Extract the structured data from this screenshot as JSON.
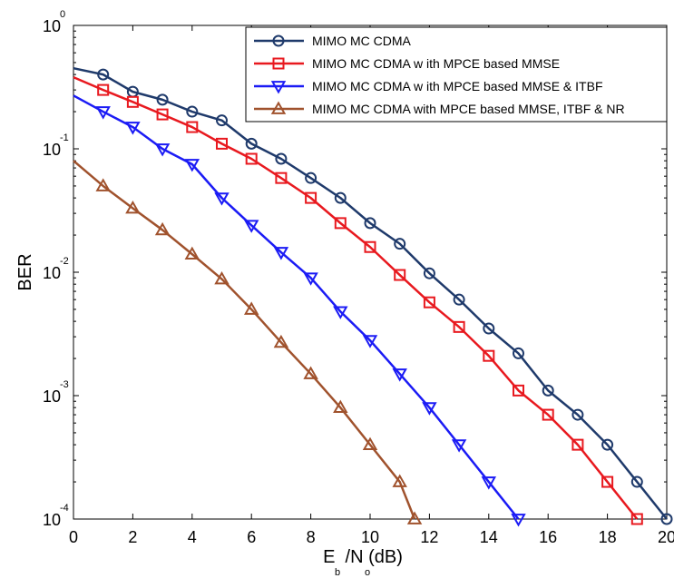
{
  "chart_data": {
    "type": "line",
    "title": "",
    "xlabel": "E  /N (dB)",
    "xlabel_subscripts": [
      "b",
      "o"
    ],
    "ylabel": "BER",
    "xlim": [
      0,
      20
    ],
    "ylim": [
      0.0001,
      1
    ],
    "yscale": "log",
    "grid": false,
    "legend_position": "top-right",
    "x_ticks": [
      "0",
      "2",
      "4",
      "6",
      "8",
      "10",
      "12",
      "14",
      "16",
      "18",
      "20"
    ],
    "y_ticks": [
      {
        "base": "10",
        "exp": "0"
      },
      {
        "base": "10",
        "exp": "-1"
      },
      {
        "base": "10",
        "exp": "-2"
      },
      {
        "base": "10",
        "exp": "-3"
      },
      {
        "base": "10",
        "exp": "-4"
      }
    ],
    "series": [
      {
        "name": "MIMO  MC CDMA",
        "color": "#1f3a6b",
        "marker": "circle",
        "x": [
          0,
          1,
          2,
          3,
          4,
          5,
          6,
          7,
          8,
          9,
          10,
          11,
          12,
          13,
          14,
          15,
          16,
          17,
          18,
          19,
          20
        ],
        "y": [
          0.45,
          0.4,
          0.29,
          0.25,
          0.2,
          0.17,
          0.11,
          0.083,
          0.058,
          0.04,
          0.025,
          0.017,
          0.0098,
          0.006,
          0.0035,
          0.0022,
          0.0011,
          0.0007,
          0.0004,
          0.0002,
          0.0001
        ]
      },
      {
        "name": "MIMO  MC CDMA  w ith MPCE  based MMSE",
        "color": "#e8191f",
        "marker": "square",
        "x": [
          0,
          1,
          2,
          3,
          4,
          5,
          6,
          7,
          8,
          9,
          10,
          11,
          12,
          13,
          14,
          15,
          16,
          17,
          18,
          19
        ],
        "y": [
          0.38,
          0.3,
          0.24,
          0.19,
          0.15,
          0.11,
          0.083,
          0.058,
          0.04,
          0.025,
          0.016,
          0.0095,
          0.0057,
          0.0036,
          0.0021,
          0.0011,
          0.0007,
          0.0004,
          0.0002,
          0.0001
        ]
      },
      {
        "name": "MIMO MC CDMA w ith MPCE based MMSE & ITBF",
        "color": "#1b1bf5",
        "marker": "triangle-down",
        "x": [
          0,
          1,
          2,
          3,
          4,
          5,
          6,
          7,
          8,
          9,
          10,
          11,
          12,
          13,
          14,
          15
        ],
        "y": [
          0.27,
          0.2,
          0.15,
          0.1,
          0.075,
          0.04,
          0.024,
          0.0145,
          0.009,
          0.0048,
          0.0028,
          0.0015,
          0.0008,
          0.0004,
          0.0002,
          0.0001
        ]
      },
      {
        "name": "MIMO MC CDMA with MPCE based MMSE, ITBF & NR",
        "color": "#a0522d",
        "marker": "triangle-up",
        "x": [
          0,
          1,
          2,
          3,
          4,
          5,
          6,
          7,
          8,
          9,
          10,
          11,
          11.5
        ],
        "y": [
          0.08,
          0.05,
          0.033,
          0.022,
          0.014,
          0.0088,
          0.005,
          0.0027,
          0.0015,
          0.0008,
          0.0004,
          0.0002,
          0.0001
        ]
      }
    ]
  }
}
